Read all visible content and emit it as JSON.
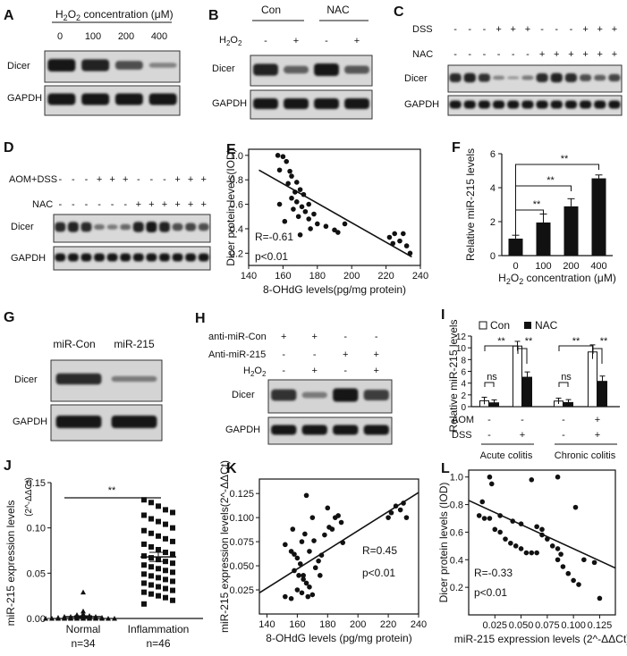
{
  "panels": {
    "A": {
      "letter": "A",
      "title_prefix": "H",
      "title_sub": "2",
      "title_mid": "O",
      "title_sub2": "2",
      "title_suffix": " concentration (μM)",
      "lanes": [
        "0",
        "100",
        "200",
        "400"
      ],
      "rows": [
        "Dicer",
        "GAPDH"
      ],
      "dicer_intensity": [
        1.0,
        0.95,
        0.7,
        0.4
      ],
      "gapdh_intensity": [
        1.0,
        1.0,
        1.0,
        1.0
      ]
    },
    "B": {
      "letter": "B",
      "groups": [
        "Con",
        "NAC"
      ],
      "treatment": "H2O2",
      "treatment_pattern": [
        "-",
        "+",
        "-",
        "+"
      ],
      "rows": [
        "Dicer",
        "GAPDH"
      ],
      "dicer_intensity": [
        0.95,
        0.6,
        1.0,
        0.65
      ],
      "gapdh_intensity": [
        1.0,
        1.0,
        1.0,
        1.0
      ]
    },
    "C": {
      "letter": "C",
      "dss_label": "DSS",
      "nac_label": "NAC",
      "dss_pattern": [
        "-",
        "-",
        "-",
        "+",
        "+",
        "+",
        "-",
        "-",
        "-",
        "+",
        "+",
        "+"
      ],
      "nac_pattern": [
        "-",
        "-",
        "-",
        "-",
        "-",
        "-",
        "+",
        "+",
        "+",
        "+",
        "+",
        "+"
      ],
      "rows": [
        "Dicer",
        "GAPDH"
      ],
      "dicer_intensity": [
        0.9,
        0.95,
        0.85,
        0.4,
        0.3,
        0.45,
        0.9,
        0.95,
        0.9,
        0.7,
        0.6,
        0.75
      ],
      "gapdh_intensity": [
        1,
        1,
        1,
        1,
        1,
        1,
        1,
        1,
        1,
        1,
        1,
        1
      ]
    },
    "D": {
      "letter": "D",
      "aom_label": "AOM+DSS",
      "nac_label": "NAC",
      "aom_pattern": [
        "-",
        "-",
        "-",
        "+",
        "+",
        "+",
        "-",
        "-",
        "-",
        "+",
        "+",
        "+"
      ],
      "nac_pattern": [
        "-",
        "-",
        "-",
        "-",
        "-",
        "-",
        "+",
        "+",
        "+",
        "+",
        "+",
        "+"
      ],
      "rows": [
        "Dicer",
        "GAPDH"
      ],
      "dicer_intensity": [
        0.9,
        0.95,
        0.9,
        0.5,
        0.45,
        0.55,
        0.95,
        1.0,
        0.95,
        0.7,
        0.75,
        0.7
      ],
      "gapdh_intensity": [
        1,
        1,
        1,
        1,
        1,
        1,
        1,
        1,
        1,
        1,
        1,
        1
      ]
    },
    "G": {
      "letter": "G",
      "lanes": [
        "miR-Con",
        "miR-215"
      ],
      "rows": [
        "Dicer",
        "GAPDH"
      ],
      "dicer_intensity": [
        0.9,
        0.45
      ],
      "gapdh_intensity": [
        1.0,
        1.0
      ]
    },
    "H": {
      "letter": "H",
      "row_labels": [
        "anti-miR-Con",
        "Anti-miR-215",
        "H2O2"
      ],
      "patterns": [
        [
          "+",
          "+",
          "-",
          "-"
        ],
        [
          "-",
          "-",
          "+",
          "+"
        ],
        [
          "-",
          "+",
          "-",
          "+"
        ]
      ],
      "rows": [
        "Dicer",
        "GAPDH"
      ],
      "dicer_intensity": [
        0.85,
        0.45,
        1.0,
        0.8
      ],
      "gapdh_intensity": [
        1.0,
        1.0,
        1.0,
        1.0
      ]
    }
  },
  "chart_data": [
    {
      "id": "E",
      "letter": "E",
      "type": "scatter",
      "title": "",
      "xlabel": "8-OHdG levels(pg/mg protein)",
      "ylabel": "Dicer protein levels(IOD)",
      "xlim": [
        140,
        240
      ],
      "ylim": [
        0.1,
        1.05
      ],
      "xticks": [
        140,
        160,
        180,
        200,
        220,
        240
      ],
      "yticks": [
        0.2,
        0.4,
        0.6,
        0.8,
        1.0
      ],
      "annotations": [
        "R=-0.61",
        "p<0.01"
      ],
      "fit": {
        "x": [
          146,
          235
        ],
        "y": [
          0.88,
          0.17
        ]
      },
      "points": [
        [
          157,
          1.0
        ],
        [
          160,
          0.99
        ],
        [
          162,
          0.95
        ],
        [
          158,
          0.88
        ],
        [
          165,
          0.83
        ],
        [
          168,
          0.78
        ],
        [
          163,
          0.77
        ],
        [
          170,
          0.72
        ],
        [
          167,
          0.7
        ],
        [
          172,
          0.68
        ],
        [
          165,
          0.65
        ],
        [
          168,
          0.62
        ],
        [
          175,
          0.6
        ],
        [
          171,
          0.58
        ],
        [
          166,
          0.56
        ],
        [
          173,
          0.54
        ],
        [
          178,
          0.52
        ],
        [
          169,
          0.5
        ],
        [
          175,
          0.48
        ],
        [
          161,
          0.46
        ],
        [
          180,
          0.44
        ],
        [
          185,
          0.42
        ],
        [
          176,
          0.4
        ],
        [
          190,
          0.39
        ],
        [
          192,
          0.37
        ],
        [
          196,
          0.44
        ],
        [
          170,
          0.35
        ],
        [
          225,
          0.36
        ],
        [
          230,
          0.36
        ],
        [
          224,
          0.28
        ],
        [
          228,
          0.3
        ],
        [
          232,
          0.26
        ],
        [
          234,
          0.2
        ],
        [
          222,
          0.33
        ],
        [
          164,
          0.87
        ],
        [
          158,
          0.6
        ]
      ]
    },
    {
      "id": "F",
      "letter": "F",
      "type": "bar",
      "title": "",
      "xlabel": "H2O2 concentration (μM)",
      "ylabel": "Relative miR-215 levels",
      "categories": [
        "0",
        "100",
        "200",
        "400"
      ],
      "values": [
        1.0,
        1.95,
        2.9,
        4.55
      ],
      "errors": [
        0.2,
        0.5,
        0.45,
        0.2
      ],
      "ylim": [
        0,
        6
      ],
      "yticks": [
        0,
        2,
        4,
        6
      ],
      "significance": [
        {
          "from": 0,
          "to": 1,
          "label": "**"
        },
        {
          "from": 0,
          "to": 2,
          "label": "**"
        },
        {
          "from": 0,
          "to": 3,
          "label": "**"
        }
      ]
    },
    {
      "id": "I",
      "letter": "I",
      "type": "bar",
      "title": "",
      "xlabel": "",
      "ylabel": "Relative miR-215 levels",
      "legend": [
        "Con",
        "NAC"
      ],
      "categories": [
        "Acute colitis -",
        "Acute colitis +",
        "Chronic colitis -",
        "Chronic colitis +"
      ],
      "series": [
        {
          "name": "Con",
          "values": [
            1.0,
            10.3,
            0.95,
            9.3
          ],
          "errors": [
            0.6,
            0.8,
            0.5,
            1.2
          ]
        },
        {
          "name": "NAC",
          "values": [
            0.65,
            5.0,
            0.7,
            4.3
          ],
          "errors": [
            0.5,
            0.9,
            0.5,
            0.9
          ]
        }
      ],
      "ylim": [
        0,
        12
      ],
      "yticks": [
        0,
        2,
        4,
        6,
        8,
        10,
        12
      ],
      "aom_label": "AOM",
      "dss_label": "DSS",
      "aom_pattern": [
        "-",
        "-",
        "-",
        "+"
      ],
      "dss_pattern": [
        "-",
        "+",
        "-",
        "+"
      ],
      "group_labels": [
        "Acute colitis",
        "Chronic colitis"
      ],
      "significance_labels": [
        "ns",
        "**",
        "**",
        "ns",
        "**",
        "**"
      ]
    },
    {
      "id": "J",
      "letter": "J",
      "type": "scatter",
      "title": "",
      "ylabel": "miR-215 expression levels",
      "ylabel_unit": "(2^-ΔΔCt)",
      "categories": [
        "Normal",
        "Inflammation"
      ],
      "group_n": [
        "n=34",
        "n=46"
      ],
      "ylim": [
        0,
        0.15
      ],
      "yticks": [
        0.0,
        0.05,
        0.1,
        0.15
      ],
      "ytick_labels": [
        "0.00",
        "0.05",
        "0.10",
        "0.15"
      ],
      "means": [
        0.002,
        0.068
      ],
      "sem": [
        0.001,
        0.005
      ],
      "significance": "**",
      "normal_values": [
        0.0,
        0.0,
        0.0,
        0.0,
        0.0,
        0.0,
        0.0,
        0.0,
        0.0,
        0.0,
        0.0,
        0.0,
        0.001,
        0.001,
        0.001,
        0.001,
        0.001,
        0.001,
        0.001,
        0.001,
        0.002,
        0.002,
        0.002,
        0.002,
        0.002,
        0.002,
        0.003,
        0.003,
        0.003,
        0.004,
        0.004,
        0.005,
        0.008,
        0.029
      ],
      "inflammation_values": [
        0.131,
        0.128,
        0.124,
        0.12,
        0.117,
        0.114,
        0.11,
        0.107,
        0.104,
        0.1,
        0.097,
        0.094,
        0.091,
        0.088,
        0.085,
        0.082,
        0.079,
        0.076,
        0.073,
        0.071,
        0.069,
        0.067,
        0.065,
        0.063,
        0.061,
        0.059,
        0.057,
        0.055,
        0.053,
        0.051,
        0.049,
        0.047,
        0.045,
        0.043,
        0.041,
        0.039,
        0.037,
        0.035,
        0.033,
        0.031,
        0.029,
        0.027,
        0.025,
        0.023,
        0.02,
        0.016
      ]
    },
    {
      "id": "K",
      "letter": "K",
      "type": "scatter",
      "title": "",
      "xlabel": "8-OHdG levels (pg/mg protein)",
      "ylabel": "miR-215 expression levels(2^-ΔΔCt)",
      "xlim": [
        135,
        240
      ],
      "ylim": [
        0.0,
        0.14
      ],
      "xticks": [
        140,
        160,
        180,
        200,
        220,
        240
      ],
      "yticks": [
        0.025,
        0.05,
        0.075,
        0.1,
        0.125
      ],
      "ytick_labels": [
        "0.025",
        "0.050",
        "0.075",
        "0.100",
        "0.125"
      ],
      "annotations": [
        "R=0.45",
        "p<0.01"
      ],
      "fit": {
        "x": [
          135,
          240
        ],
        "y": [
          0.022,
          0.126
        ]
      },
      "points": [
        [
          152,
          0.072
        ],
        [
          156,
          0.065
        ],
        [
          160,
          0.058
        ],
        [
          163,
          0.075
        ],
        [
          165,
          0.083
        ],
        [
          158,
          0.045
        ],
        [
          161,
          0.04
        ],
        [
          164,
          0.036
        ],
        [
          166,
          0.032
        ],
        [
          168,
          0.028
        ],
        [
          160,
          0.025
        ],
        [
          163,
          0.022
        ],
        [
          167,
          0.018
        ],
        [
          170,
          0.02
        ],
        [
          152,
          0.018
        ],
        [
          156,
          0.016
        ],
        [
          172,
          0.048
        ],
        [
          174,
          0.055
        ],
        [
          176,
          0.061
        ],
        [
          178,
          0.082
        ],
        [
          181,
          0.09
        ],
        [
          183,
          0.088
        ],
        [
          185,
          0.1
        ],
        [
          187,
          0.102
        ],
        [
          189,
          0.095
        ],
        [
          180,
          0.11
        ],
        [
          166,
          0.123
        ],
        [
          170,
          0.1
        ],
        [
          168,
          0.065
        ],
        [
          162,
          0.052
        ],
        [
          158,
          0.062
        ],
        [
          175,
          0.04
        ],
        [
          190,
          0.074
        ],
        [
          222,
          0.105
        ],
        [
          225,
          0.112
        ],
        [
          228,
          0.108
        ],
        [
          230,
          0.115
        ],
        [
          232,
          0.1
        ],
        [
          220,
          0.1
        ],
        [
          157,
          0.088
        ],
        [
          171,
          0.076
        ],
        [
          164,
          0.04
        ]
      ]
    },
    {
      "id": "L",
      "letter": "L",
      "type": "scatter",
      "title": "",
      "xlabel": "miR-215 expression levels (2^-ΔΔCt)",
      "ylabel": "Dicer protein levels (IOD)",
      "xlim": [
        0.0,
        0.14
      ],
      "ylim": [
        0.0,
        1.05
      ],
      "xticks": [
        0.025,
        0.05,
        0.075,
        0.1,
        0.125
      ],
      "xtick_labels": [
        "0.025",
        "0.050",
        "0.075",
        "0.100",
        "0.125"
      ],
      "yticks": [
        0.2,
        0.4,
        0.6,
        0.8,
        1.0
      ],
      "annotations": [
        "R=-0.33",
        "p<0.01"
      ],
      "fit": {
        "x": [
          0.0,
          0.14
        ],
        "y": [
          0.83,
          0.34
        ]
      },
      "points": [
        [
          0.02,
          1.0
        ],
        [
          0.022,
          0.95
        ],
        [
          0.06,
          0.98
        ],
        [
          0.085,
          1.0
        ],
        [
          0.102,
          0.78
        ],
        [
          0.013,
          0.82
        ],
        [
          0.01,
          0.72
        ],
        [
          0.015,
          0.7
        ],
        [
          0.02,
          0.7
        ],
        [
          0.025,
          0.62
        ],
        [
          0.03,
          0.6
        ],
        [
          0.035,
          0.55
        ],
        [
          0.04,
          0.52
        ],
        [
          0.045,
          0.5
        ],
        [
          0.05,
          0.48
        ],
        [
          0.055,
          0.45
        ],
        [
          0.06,
          0.45
        ],
        [
          0.042,
          0.68
        ],
        [
          0.05,
          0.66
        ],
        [
          0.065,
          0.64
        ],
        [
          0.07,
          0.62
        ],
        [
          0.07,
          0.58
        ],
        [
          0.075,
          0.55
        ],
        [
          0.08,
          0.5
        ],
        [
          0.085,
          0.48
        ],
        [
          0.088,
          0.44
        ],
        [
          0.09,
          0.35
        ],
        [
          0.095,
          0.3
        ],
        [
          0.1,
          0.25
        ],
        [
          0.105,
          0.22
        ],
        [
          0.11,
          0.4
        ],
        [
          0.12,
          0.38
        ],
        [
          0.065,
          0.45
        ],
        [
          0.085,
          0.4
        ],
        [
          0.125,
          0.12
        ],
        [
          0.03,
          0.72
        ]
      ]
    }
  ]
}
